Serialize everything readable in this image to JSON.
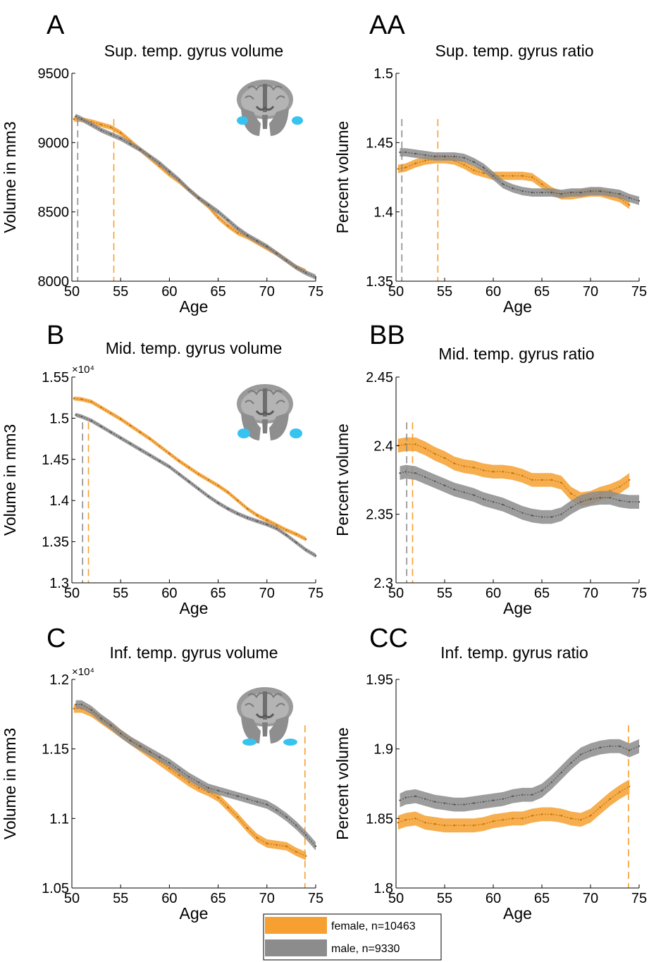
{
  "legend": [
    {
      "label": "female, n=10463",
      "color": "#F5A030"
    },
    {
      "label": "male, n=9330",
      "color": "#8C8C8C"
    }
  ],
  "chart_data": [
    {
      "type": "line",
      "letter": "A",
      "title": "Sup. temp. gyrus volume",
      "xlabel": "Age",
      "ylabel": "Volume in mm3",
      "y_multiplier": "",
      "xlim": [
        50,
        75
      ],
      "ylim": [
        8000,
        9500
      ],
      "xticks": [
        "50",
        "55",
        "60",
        "65",
        "70",
        "75"
      ],
      "yticks": [
        "8000",
        "8500",
        "9000",
        "9500"
      ],
      "yticks_values": [
        8000,
        8500,
        9000,
        9500
      ],
      "brain_inset": true,
      "grid": false,
      "series": [
        {
          "name": "female, n=10463",
          "color": "#F5A030",
          "x": [
            50.2,
            51,
            52,
            53,
            54,
            55,
            56,
            57,
            58,
            59,
            60,
            61,
            62,
            63,
            64,
            65,
            66,
            67,
            68,
            69,
            70,
            71,
            72,
            73,
            74
          ],
          "y": [
            9170,
            9165,
            9150,
            9130,
            9110,
            9070,
            9010,
            8950,
            8890,
            8830,
            8770,
            8720,
            8660,
            8600,
            8540,
            8460,
            8400,
            8350,
            8320,
            8280,
            8240,
            8200,
            8150,
            8100,
            8070
          ],
          "band": 18,
          "vline": 54.3
        },
        {
          "name": "male, n=9330",
          "color": "#8C8C8C",
          "x": [
            50.4,
            51,
            52,
            53,
            54,
            55,
            56,
            57,
            58,
            59,
            60,
            61,
            62,
            63,
            64,
            65,
            66,
            67,
            68,
            69,
            70,
            71,
            72,
            73,
            74,
            75
          ],
          "y": [
            9190,
            9170,
            9130,
            9090,
            9060,
            9030,
            8990,
            8950,
            8900,
            8850,
            8790,
            8730,
            8660,
            8600,
            8550,
            8500,
            8440,
            8380,
            8330,
            8290,
            8250,
            8200,
            8150,
            8100,
            8060,
            8030
          ],
          "band": 18,
          "vline": 50.6
        }
      ]
    },
    {
      "type": "line",
      "letter": "AA",
      "title": "Sup. temp. gyrus ratio",
      "xlabel": "Age",
      "ylabel": "Percent volume",
      "y_multiplier": "",
      "xlim": [
        50,
        75
      ],
      "ylim": [
        1.35,
        1.5
      ],
      "xticks": [
        "50",
        "55",
        "60",
        "65",
        "70",
        "75"
      ],
      "yticks": [
        "1.35",
        "1.4",
        "1.45",
        "1.5"
      ],
      "yticks_values": [
        1.35,
        1.4,
        1.45,
        1.5
      ],
      "brain_inset": false,
      "grid": false,
      "series": [
        {
          "name": "female, n=10463",
          "color": "#F5A030",
          "x": [
            50.2,
            51,
            52,
            53,
            54,
            55,
            56,
            57,
            58,
            59,
            60,
            61,
            62,
            63,
            64,
            65,
            66,
            67,
            68,
            69,
            70,
            71,
            72,
            73,
            74
          ],
          "y": [
            1.431,
            1.432,
            1.435,
            1.437,
            1.438,
            1.438,
            1.437,
            1.434,
            1.43,
            1.428,
            1.426,
            1.426,
            1.426,
            1.426,
            1.425,
            1.42,
            1.415,
            1.412,
            1.412,
            1.413,
            1.414,
            1.414,
            1.412,
            1.41,
            1.405
          ],
          "band": 0.003,
          "vline": 54.3
        },
        {
          "name": "male, n=9330",
          "color": "#8C8C8C",
          "x": [
            50.4,
            51,
            52,
            53,
            54,
            55,
            56,
            57,
            58,
            59,
            60,
            61,
            62,
            63,
            64,
            65,
            66,
            67,
            68,
            69,
            70,
            71,
            72,
            73,
            74,
            75
          ],
          "y": [
            1.443,
            1.443,
            1.442,
            1.441,
            1.44,
            1.44,
            1.44,
            1.439,
            1.436,
            1.432,
            1.426,
            1.42,
            1.417,
            1.415,
            1.414,
            1.414,
            1.414,
            1.413,
            1.414,
            1.414,
            1.415,
            1.415,
            1.414,
            1.413,
            1.41,
            1.408
          ],
          "band": 0.003,
          "vline": 50.6
        }
      ]
    },
    {
      "type": "line",
      "letter": "B",
      "title": "Mid. temp. gyrus volume",
      "xlabel": "Age",
      "ylabel": "Volume in mm3",
      "y_multiplier": "×10⁴",
      "xlim": [
        50,
        75
      ],
      "ylim": [
        1.3,
        1.55
      ],
      "xticks": [
        "50",
        "55",
        "60",
        "65",
        "70",
        "75"
      ],
      "yticks": [
        "1.3",
        "1.35",
        "1.4",
        "1.45",
        "1.5",
        "1.55"
      ],
      "yticks_values": [
        1.3,
        1.35,
        1.4,
        1.45,
        1.5,
        1.55
      ],
      "brain_inset": true,
      "grid": false,
      "series": [
        {
          "name": "female, n=10463",
          "color": "#F5A030",
          "x": [
            50.2,
            51,
            52,
            53,
            54,
            55,
            56,
            57,
            58,
            59,
            60,
            61,
            62,
            63,
            64,
            65,
            66,
            67,
            68,
            69,
            70,
            71,
            72,
            73,
            74
          ],
          "y": [
            1.524,
            1.523,
            1.52,
            1.513,
            1.506,
            1.499,
            1.491,
            1.483,
            1.475,
            1.466,
            1.457,
            1.448,
            1.44,
            1.432,
            1.425,
            1.418,
            1.41,
            1.4,
            1.39,
            1.382,
            1.376,
            1.37,
            1.364,
            1.359,
            1.353
          ],
          "band": 0.0025,
          "vline": 51.7
        },
        {
          "name": "male, n=9330",
          "color": "#8C8C8C",
          "x": [
            50.4,
            51,
            52,
            53,
            54,
            55,
            56,
            57,
            58,
            59,
            60,
            61,
            62,
            63,
            64,
            65,
            66,
            67,
            68,
            69,
            70,
            71,
            72,
            73,
            74,
            75
          ],
          "y": [
            1.504,
            1.502,
            1.497,
            1.49,
            1.483,
            1.476,
            1.469,
            1.462,
            1.455,
            1.448,
            1.441,
            1.432,
            1.423,
            1.414,
            1.405,
            1.397,
            1.39,
            1.384,
            1.379,
            1.375,
            1.371,
            1.366,
            1.358,
            1.349,
            1.34,
            1.333
          ],
          "band": 0.0025,
          "vline": 51.1
        }
      ]
    },
    {
      "type": "line",
      "letter": "BB",
      "title": "Mid. temp. gyrus ratio",
      "xlabel": "Age",
      "ylabel": "Percent volume",
      "y_multiplier": "",
      "xlim": [
        50,
        75
      ],
      "ylim": [
        2.3,
        2.45
      ],
      "xticks": [
        "50",
        "55",
        "60",
        "65",
        "70",
        "75"
      ],
      "yticks": [
        "2.3",
        "2.35",
        "2.4",
        "2.45"
      ],
      "yticks_values": [
        2.3,
        2.35,
        2.4,
        2.45
      ],
      "brain_inset": false,
      "grid": false,
      "series": [
        {
          "name": "female, n=10463",
          "color": "#F5A030",
          "x": [
            50.2,
            51,
            52,
            53,
            54,
            55,
            56,
            57,
            58,
            59,
            60,
            61,
            62,
            63,
            64,
            65,
            66,
            67,
            68,
            69,
            70,
            71,
            72,
            73,
            74
          ],
          "y": [
            2.4,
            2.401,
            2.401,
            2.398,
            2.394,
            2.391,
            2.387,
            2.385,
            2.384,
            2.382,
            2.381,
            2.381,
            2.38,
            2.378,
            2.375,
            2.375,
            2.375,
            2.373,
            2.365,
            2.361,
            2.362,
            2.365,
            2.367,
            2.37,
            2.375
          ],
          "band": 0.005,
          "vline": 51.7
        },
        {
          "name": "male, n=9330",
          "color": "#8C8C8C",
          "x": [
            50.4,
            51,
            52,
            53,
            54,
            55,
            56,
            57,
            58,
            59,
            60,
            61,
            62,
            63,
            64,
            65,
            66,
            67,
            68,
            69,
            70,
            71,
            72,
            73,
            74,
            75
          ],
          "y": [
            2.38,
            2.381,
            2.38,
            2.377,
            2.374,
            2.371,
            2.368,
            2.366,
            2.364,
            2.361,
            2.359,
            2.357,
            2.354,
            2.351,
            2.349,
            2.348,
            2.348,
            2.35,
            2.355,
            2.359,
            2.361,
            2.362,
            2.362,
            2.36,
            2.359,
            2.359
          ],
          "band": 0.005,
          "vline": 51.1
        }
      ]
    },
    {
      "type": "line",
      "letter": "C",
      "title": "Inf. temp. gyrus volume",
      "xlabel": "Age",
      "ylabel": "Volume in mm3",
      "y_multiplier": "×10⁴",
      "xlim": [
        50,
        75
      ],
      "ylim": [
        1.05,
        1.2
      ],
      "xticks": [
        "50",
        "55",
        "60",
        "65",
        "70",
        "75"
      ],
      "yticks": [
        "1.05",
        "1.1",
        "1.15",
        "1.2"
      ],
      "yticks_values": [
        1.05,
        1.1,
        1.15,
        1.2
      ],
      "brain_inset": true,
      "grid": false,
      "series": [
        {
          "name": "female, n=10463",
          "color": "#F5A030",
          "x": [
            50.2,
            51,
            52,
            53,
            54,
            55,
            56,
            57,
            58,
            59,
            60,
            61,
            62,
            63,
            64,
            65,
            66,
            67,
            68,
            69,
            70,
            71,
            72,
            73,
            74
          ],
          "y": [
            1.179,
            1.179,
            1.176,
            1.171,
            1.166,
            1.161,
            1.156,
            1.151,
            1.146,
            1.141,
            1.136,
            1.131,
            1.126,
            1.122,
            1.119,
            1.115,
            1.108,
            1.101,
            1.093,
            1.086,
            1.082,
            1.081,
            1.08,
            1.076,
            1.073
          ],
          "band": 0.003,
          "vline": 73.9
        },
        {
          "name": "male, n=9330",
          "color": "#8C8C8C",
          "x": [
            50.4,
            51,
            52,
            53,
            54,
            55,
            56,
            57,
            58,
            59,
            60,
            61,
            62,
            63,
            64,
            65,
            66,
            67,
            68,
            69,
            70,
            71,
            72,
            73,
            74,
            75
          ],
          "y": [
            1.182,
            1.182,
            1.178,
            1.172,
            1.167,
            1.161,
            1.156,
            1.152,
            1.148,
            1.144,
            1.14,
            1.135,
            1.13,
            1.126,
            1.122,
            1.12,
            1.118,
            1.116,
            1.114,
            1.112,
            1.11,
            1.106,
            1.101,
            1.095,
            1.088,
            1.08
          ],
          "band": 0.003,
          "vline": null
        }
      ]
    },
    {
      "type": "line",
      "letter": "CC",
      "title": "Inf. temp. gyrus ratio",
      "xlabel": "Age",
      "ylabel": "Percent volume",
      "y_multiplier": "",
      "xlim": [
        50,
        75
      ],
      "ylim": [
        1.8,
        1.95
      ],
      "xticks": [
        "50",
        "55",
        "60",
        "65",
        "70",
        "75"
      ],
      "yticks": [
        "1.8",
        "1.85",
        "1.9",
        "1.95"
      ],
      "yticks_values": [
        1.8,
        1.85,
        1.9,
        1.95
      ],
      "brain_inset": false,
      "grid": false,
      "series": [
        {
          "name": "female, n=10463",
          "color": "#F5A030",
          "x": [
            50.2,
            51,
            52,
            53,
            54,
            55,
            56,
            57,
            58,
            59,
            60,
            61,
            62,
            63,
            64,
            65,
            66,
            67,
            68,
            69,
            70,
            71,
            72,
            73,
            74
          ],
          "y": [
            1.847,
            1.849,
            1.85,
            1.847,
            1.846,
            1.845,
            1.845,
            1.845,
            1.845,
            1.846,
            1.848,
            1.849,
            1.85,
            1.85,
            1.852,
            1.853,
            1.853,
            1.852,
            1.85,
            1.849,
            1.852,
            1.858,
            1.864,
            1.869,
            1.873
          ],
          "band": 0.005,
          "vline": 73.9
        },
        {
          "name": "male, n=9330",
          "color": "#8C8C8C",
          "x": [
            50.4,
            51,
            52,
            53,
            54,
            55,
            56,
            57,
            58,
            59,
            60,
            61,
            62,
            63,
            64,
            65,
            66,
            67,
            68,
            69,
            70,
            71,
            72,
            73,
            74,
            75
          ],
          "y": [
            1.863,
            1.865,
            1.866,
            1.864,
            1.862,
            1.861,
            1.86,
            1.86,
            1.861,
            1.862,
            1.863,
            1.864,
            1.866,
            1.867,
            1.867,
            1.87,
            1.876,
            1.883,
            1.89,
            1.896,
            1.899,
            1.901,
            1.902,
            1.902,
            1.899,
            1.902
          ],
          "band": 0.005,
          "vline": null
        }
      ]
    }
  ]
}
